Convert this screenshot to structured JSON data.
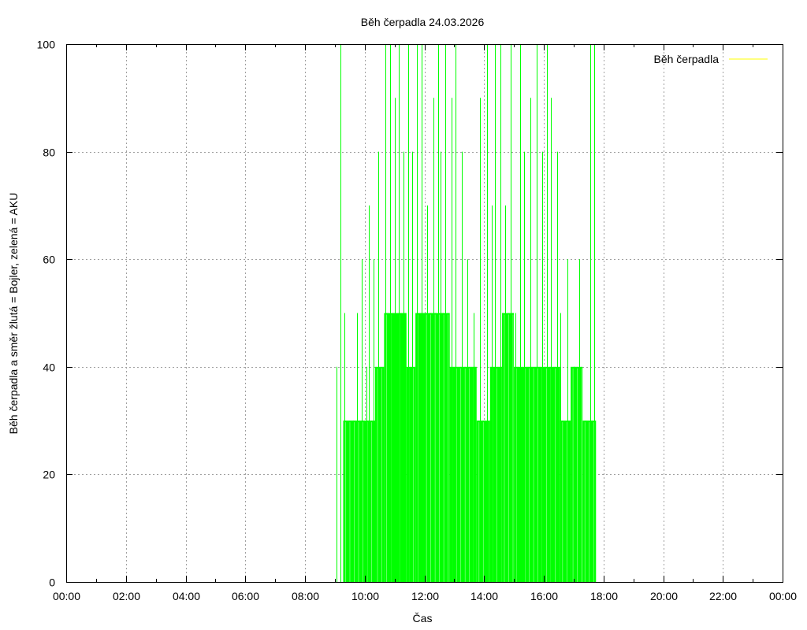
{
  "chart_data": {
    "type": "bar",
    "title": "Běh čerpadla 24.03.2026",
    "xlabel": "Čas",
    "ylabel": "Běh čerpadla a směr žlutá = Bojler, zelená = AKU",
    "xlim": [
      0,
      24
    ],
    "ylim": [
      0,
      100
    ],
    "x_ticks": [
      {
        "value": 0,
        "label": "00:00"
      },
      {
        "value": 2,
        "label": "02:00"
      },
      {
        "value": 4,
        "label": "04:00"
      },
      {
        "value": 6,
        "label": "06:00"
      },
      {
        "value": 8,
        "label": "08:00"
      },
      {
        "value": 10,
        "label": "10:00"
      },
      {
        "value": 12,
        "label": "12:00"
      },
      {
        "value": 14,
        "label": "14:00"
      },
      {
        "value": 16,
        "label": "16:00"
      },
      {
        "value": 18,
        "label": "18:00"
      },
      {
        "value": 20,
        "label": "20:00"
      },
      {
        "value": 22,
        "label": "22:00"
      },
      {
        "value": 24,
        "label": "00:00"
      }
    ],
    "y_ticks": [
      {
        "value": 0,
        "label": "0"
      },
      {
        "value": 20,
        "label": "20"
      },
      {
        "value": 40,
        "label": "40"
      },
      {
        "value": 60,
        "label": "60"
      },
      {
        "value": 80,
        "label": "80"
      },
      {
        "value": 100,
        "label": "100"
      }
    ],
    "grid": true,
    "legend": {
      "position": "top-right",
      "entries": [
        {
          "label": "Běh čerpadla",
          "color": "#ffff00"
        }
      ]
    },
    "series": [
      {
        "color": "#00ff00",
        "segments": [
          {
            "start": 9.28,
            "end": 10.35,
            "level": 30
          },
          {
            "start": 10.35,
            "end": 10.65,
            "level": 40
          },
          {
            "start": 10.65,
            "end": 11.4,
            "level": 50
          },
          {
            "start": 11.4,
            "end": 11.7,
            "level": 40
          },
          {
            "start": 11.7,
            "end": 12.85,
            "level": 50
          },
          {
            "start": 12.85,
            "end": 13.75,
            "level": 40
          },
          {
            "start": 13.75,
            "end": 14.2,
            "level": 30
          },
          {
            "start": 14.2,
            "end": 14.6,
            "level": 40
          },
          {
            "start": 14.6,
            "end": 15.0,
            "level": 50
          },
          {
            "start": 15.0,
            "end": 16.55,
            "level": 40
          },
          {
            "start": 16.55,
            "end": 16.9,
            "level": 30
          },
          {
            "start": 16.9,
            "end": 17.3,
            "level": 40
          },
          {
            "start": 17.3,
            "end": 17.75,
            "level": 30
          }
        ],
        "spikes": [
          {
            "x": 9.05,
            "y": 40
          },
          {
            "x": 9.2,
            "y": 100
          },
          {
            "x": 9.32,
            "y": 50
          },
          {
            "x": 9.6,
            "y": 30
          },
          {
            "x": 9.75,
            "y": 50
          },
          {
            "x": 9.9,
            "y": 60
          },
          {
            "x": 10.05,
            "y": 40
          },
          {
            "x": 10.15,
            "y": 70
          },
          {
            "x": 10.3,
            "y": 60
          },
          {
            "x": 10.45,
            "y": 80
          },
          {
            "x": 10.7,
            "y": 100
          },
          {
            "x": 10.85,
            "y": 100
          },
          {
            "x": 11.0,
            "y": 90
          },
          {
            "x": 11.15,
            "y": 100
          },
          {
            "x": 11.3,
            "y": 80
          },
          {
            "x": 11.45,
            "y": 100
          },
          {
            "x": 11.6,
            "y": 80
          },
          {
            "x": 11.75,
            "y": 100
          },
          {
            "x": 11.9,
            "y": 100
          },
          {
            "x": 12.1,
            "y": 70
          },
          {
            "x": 12.3,
            "y": 90
          },
          {
            "x": 12.45,
            "y": 100
          },
          {
            "x": 12.55,
            "y": 80
          },
          {
            "x": 12.7,
            "y": 100
          },
          {
            "x": 12.9,
            "y": 90
          },
          {
            "x": 13.05,
            "y": 100
          },
          {
            "x": 13.25,
            "y": 80
          },
          {
            "x": 13.45,
            "y": 60
          },
          {
            "x": 13.65,
            "y": 50
          },
          {
            "x": 13.85,
            "y": 90
          },
          {
            "x": 14.1,
            "y": 100
          },
          {
            "x": 14.25,
            "y": 70
          },
          {
            "x": 14.35,
            "y": 100
          },
          {
            "x": 14.55,
            "y": 100
          },
          {
            "x": 14.7,
            "y": 70
          },
          {
            "x": 14.9,
            "y": 100
          },
          {
            "x": 15.05,
            "y": 50
          },
          {
            "x": 15.2,
            "y": 100
          },
          {
            "x": 15.35,
            "y": 80
          },
          {
            "x": 15.55,
            "y": 90
          },
          {
            "x": 15.75,
            "y": 100
          },
          {
            "x": 15.95,
            "y": 80
          },
          {
            "x": 16.1,
            "y": 100
          },
          {
            "x": 16.25,
            "y": 90
          },
          {
            "x": 16.45,
            "y": 80
          },
          {
            "x": 16.55,
            "y": 50
          },
          {
            "x": 16.8,
            "y": 60
          },
          {
            "x": 17.0,
            "y": 40
          },
          {
            "x": 17.2,
            "y": 60
          },
          {
            "x": 17.4,
            "y": 30
          },
          {
            "x": 17.55,
            "y": 100
          },
          {
            "x": 17.7,
            "y": 100
          }
        ]
      }
    ]
  }
}
